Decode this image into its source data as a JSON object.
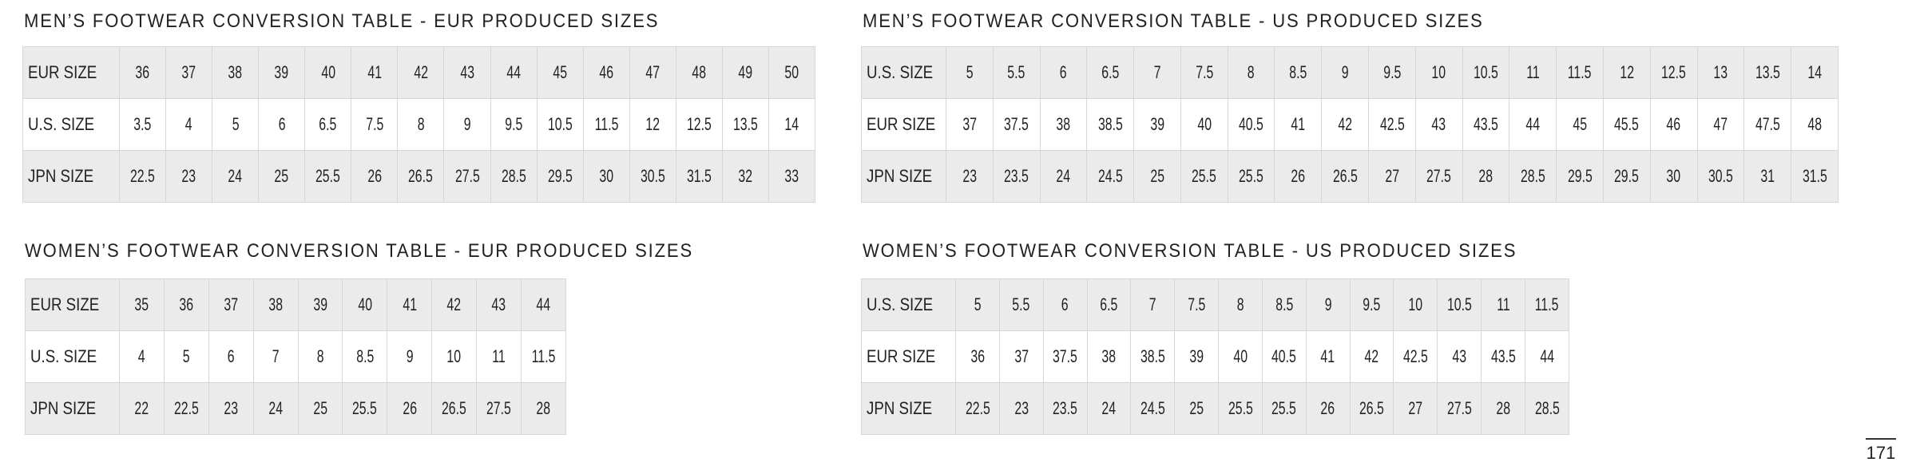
{
  "tables": [
    {
      "title": "MEN’S FOOTWEAR CONVERSION TABLE - EUR PRODUCED SIZES",
      "rows": [
        {
          "label": "EUR SIZE",
          "values": [
            "36",
            "37",
            "38",
            "39",
            "40",
            "41",
            "42",
            "43",
            "44",
            "45",
            "46",
            "47",
            "48",
            "49",
            "50"
          ]
        },
        {
          "label": "U.S. SIZE",
          "values": [
            "3.5",
            "4",
            "5",
            "6",
            "6.5",
            "7.5",
            "8",
            "9",
            "9.5",
            "10.5",
            "11.5",
            "12",
            "12.5",
            "13.5",
            "14"
          ]
        },
        {
          "label": "JPN SIZE",
          "values": [
            "22.5",
            "23",
            "24",
            "25",
            "25.5",
            "26",
            "26.5",
            "27.5",
            "28.5",
            "29.5",
            "30",
            "30.5",
            "31.5",
            "32",
            "33"
          ]
        }
      ]
    },
    {
      "title": "MEN’S FOOTWEAR CONVERSION TABLE - US PRODUCED SIZES",
      "rows": [
        {
          "label": "U.S. SIZE",
          "values": [
            "5",
            "5.5",
            "6",
            "6.5",
            "7",
            "7.5",
            "8",
            "8.5",
            "9",
            "9.5",
            "10",
            "10.5",
            "11",
            "11.5",
            "12",
            "12.5",
            "13",
            "13.5",
            "14"
          ]
        },
        {
          "label": "EUR SIZE",
          "values": [
            "37",
            "37.5",
            "38",
            "38.5",
            "39",
            "40",
            "40.5",
            "41",
            "42",
            "42.5",
            "43",
            "43.5",
            "44",
            "45",
            "45.5",
            "46",
            "47",
            "47.5",
            "48"
          ]
        },
        {
          "label": "JPN SIZE",
          "values": [
            "23",
            "23.5",
            "24",
            "24.5",
            "25",
            "25.5",
            "25.5",
            "26",
            "26.5",
            "27",
            "27.5",
            "28",
            "28.5",
            "29.5",
            "29.5",
            "30",
            "30.5",
            "31",
            "31.5"
          ]
        }
      ]
    },
    {
      "title": "WOMEN’S FOOTWEAR CONVERSION TABLE - EUR PRODUCED SIZES",
      "rows": [
        {
          "label": "EUR SIZE",
          "values": [
            "35",
            "36",
            "37",
            "38",
            "39",
            "40",
            "41",
            "42",
            "43",
            "44"
          ]
        },
        {
          "label": "U.S. SIZE",
          "values": [
            "4",
            "5",
            "6",
            "7",
            "8",
            "8.5",
            "9",
            "10",
            "11",
            "11.5"
          ]
        },
        {
          "label": "JPN SIZE",
          "values": [
            "22",
            "22.5",
            "23",
            "24",
            "25",
            "25.5",
            "26",
            "26.5",
            "27.5",
            "28"
          ]
        }
      ]
    },
    {
      "title": "WOMEN’S FOOTWEAR CONVERSION TABLE - US PRODUCED SIZES",
      "rows": [
        {
          "label": "U.S. SIZE",
          "values": [
            "5",
            "5.5",
            "6",
            "6.5",
            "7",
            "7.5",
            "8",
            "8.5",
            "9",
            "9.5",
            "10",
            "10.5",
            "11",
            "11.5"
          ]
        },
        {
          "label": "EUR SIZE",
          "values": [
            "36",
            "37",
            "37.5",
            "38",
            "38.5",
            "39",
            "40",
            "40.5",
            "41",
            "42",
            "42.5",
            "43",
            "43.5",
            "44"
          ]
        },
        {
          "label": "JPN SIZE",
          "values": [
            "22.5",
            "23",
            "23.5",
            "24",
            "24.5",
            "25",
            "25.5",
            "25.5",
            "26",
            "26.5",
            "27",
            "27.5",
            "28",
            "28.5"
          ]
        }
      ]
    }
  ],
  "page_number": "171",
  "colors": {
    "shaded_row": "#ebebeb",
    "border": "#d6d6d6",
    "text": "#222222"
  }
}
